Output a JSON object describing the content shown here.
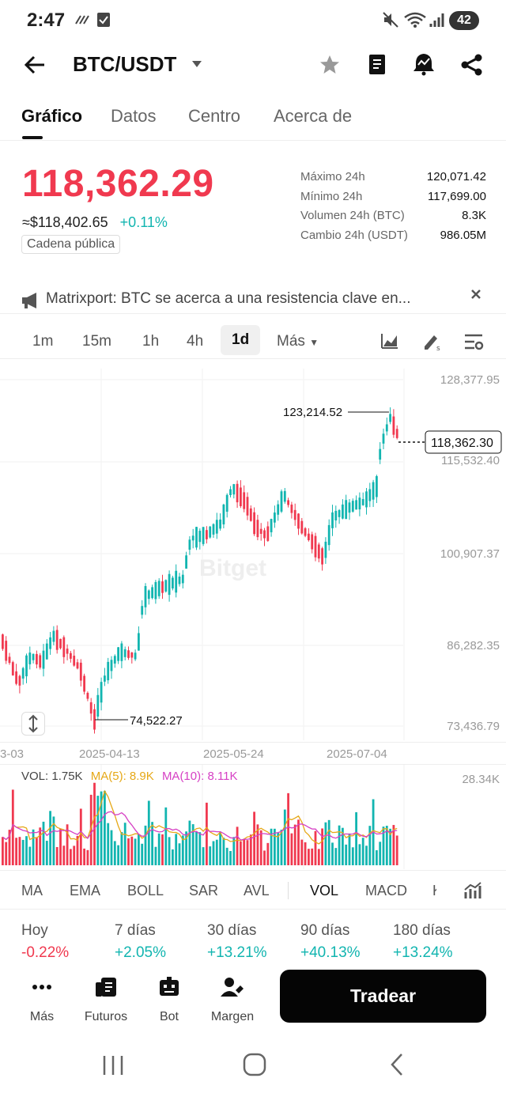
{
  "status_bar": {
    "time": "2:47",
    "battery": "42"
  },
  "header": {
    "pair": "BTC/USDT"
  },
  "tabs": [
    "Gráfico",
    "Datos",
    "Centro",
    "Acerca de"
  ],
  "ticker": {
    "price": "118,362.29",
    "usd_price": "≈$118,402.65",
    "change_pct": "+0.11%",
    "chain_badge": "Cadena pública",
    "stats": [
      {
        "label": "Máximo 24h",
        "value": "120,071.42"
      },
      {
        "label": "Mínimo 24h",
        "value": "117,699.00"
      },
      {
        "label": "Volumen 24h (BTC)",
        "value": "8.3K"
      },
      {
        "label": "Cambio 24h (USDT)",
        "value": "986.05M"
      }
    ]
  },
  "news": {
    "text": "Matrixport: BTC se acerca a una resistencia clave en..."
  },
  "timeframes": [
    "1m",
    "15m",
    "1h",
    "4h",
    "1d"
  ],
  "timeframe_active": "1d",
  "timeframe_more": "Más",
  "chart": {
    "y_labels": [
      "128,377.95",
      "115,532.40",
      "100,907.37",
      "86,282.35",
      "73,436.79"
    ],
    "high_marker": "123,214.52",
    "low_marker": "74,522.27",
    "last_price_tag": "118,362.30",
    "watermark": "Bitget",
    "dates": [
      "3-03",
      "2025-04-13",
      "2025-05-24",
      "2025-07-04"
    ],
    "colors": {
      "up": "#12b5b0",
      "down": "#f0394f"
    }
  },
  "volume": {
    "vol": "VOL: 1.75K",
    "ma5": "MA(5): 8.9K",
    "ma10": "MA(10): 8.11K",
    "max_label": "28.34K",
    "colors": {
      "ma5": "#e6a817",
      "ma10": "#d640c4"
    }
  },
  "indicators": [
    "MA",
    "EMA",
    "BOLL",
    "SAR",
    "AVL",
    "VOL",
    "MACD",
    "K"
  ],
  "performance": [
    {
      "label": "Hoy",
      "value": "-0.22%"
    },
    {
      "label": "7 días",
      "value": "+2.05%"
    },
    {
      "label": "30 días",
      "value": "+13.21%"
    },
    {
      "label": "90 días",
      "value": "+40.13%"
    },
    {
      "label": "180 días",
      "value": "+13.24%"
    }
  ],
  "bottom_nav": [
    "Más",
    "Futuros",
    "Bot",
    "Margen"
  ],
  "trade_button": "Tradear"
}
